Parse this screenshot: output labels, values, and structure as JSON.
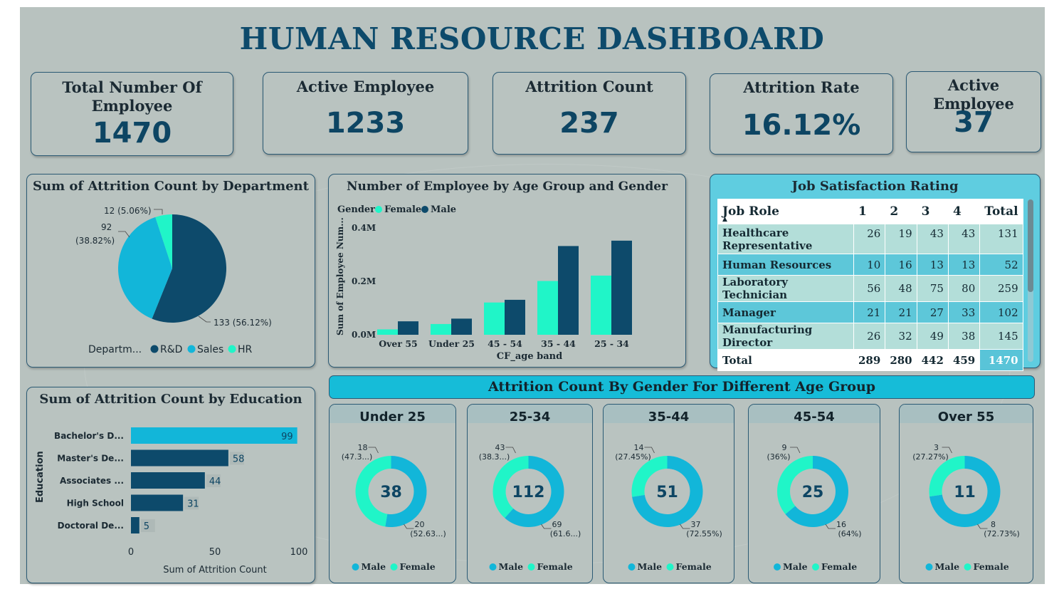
{
  "title": "HUMAN RESOURCE DASHBOARD",
  "kpis": [
    {
      "label": "Total Number Of Employee",
      "value": "1470"
    },
    {
      "label": "Active Employee",
      "value": "1233"
    },
    {
      "label": "Attrition Count",
      "value": "237"
    },
    {
      "label": "Attrition Rate",
      "value": "16.12%"
    },
    {
      "label": "Active Employee",
      "value": "37"
    }
  ],
  "colors": {
    "rd": "#0d4a6b",
    "sales": "#12b6d9",
    "hr": "#20f5c8",
    "male": "#0d4a6b",
    "female": "#20f5c8",
    "donut_male": "#12b6d9"
  },
  "department_pie": {
    "title": "Sum of Attrition Count by Department",
    "legend_title": "Departm...",
    "labels": {
      "hr": "12 (5.06%)",
      "sales_a": "92",
      "sales_b": "(38.82%)",
      "rd": "133 (56.12%)"
    }
  },
  "age_gender_chart": {
    "title": "Number of Employee by Age Group and Gender",
    "legend_title": "Gender",
    "ylabel": "Sum of Employee Num...",
    "xlabel": "CF_age band",
    "yticks": [
      "0.4M",
      "0.2M",
      "0.0M"
    ]
  },
  "job_satisfaction": {
    "title": "Job Satisfaction Rating",
    "headers": [
      "Job Role",
      "1",
      "2",
      "3",
      "4",
      "Total"
    ],
    "rows": [
      {
        "role": "Healthcare Representative",
        "v1": "26",
        "v2": "19",
        "v3": "43",
        "v4": "43",
        "total": "131"
      },
      {
        "role": "Human Resources",
        "v1": "10",
        "v2": "16",
        "v3": "13",
        "v4": "13",
        "total": "52"
      },
      {
        "role": "Laboratory Technician",
        "v1": "56",
        "v2": "48",
        "v3": "75",
        "v4": "80",
        "total": "259"
      },
      {
        "role": "Manager",
        "v1": "21",
        "v2": "21",
        "v3": "27",
        "v4": "33",
        "total": "102"
      },
      {
        "role": "Manufacturing Director",
        "v1": "26",
        "v2": "32",
        "v3": "49",
        "v4": "38",
        "total": "145"
      }
    ],
    "totals": {
      "label": "Total",
      "v1": "289",
      "v2": "280",
      "v3": "442",
      "v4": "459",
      "total": "1470"
    }
  },
  "education_chart": {
    "title": "Sum of Attrition Count by Education",
    "ylabel": "Education",
    "xlabel": "Sum of Attrition Count",
    "xticks": [
      "0",
      "50",
      "100"
    ]
  },
  "attrition_gender_age": {
    "title": "Attrition Count By Gender For Different Age Group",
    "legend": {
      "male": "Male",
      "female": "Female"
    },
    "groups": [
      {
        "name": "Under 25",
        "total": "38",
        "female_a": "18",
        "female_b": "(47.3...)",
        "male_a": "20",
        "male_b": "(52.63...)"
      },
      {
        "name": "25-34",
        "total": "112",
        "female_a": "43",
        "female_b": "(38.3...)",
        "male_a": "69",
        "male_b": "(61.6...)"
      },
      {
        "name": "35-44",
        "total": "51",
        "female_a": "14",
        "female_b": "(27.45%)",
        "male_a": "37",
        "male_b": "(72.55%)"
      },
      {
        "name": "45-54",
        "total": "25",
        "female_a": "9",
        "female_b": "(36%)",
        "male_a": "16",
        "male_b": "(64%)"
      },
      {
        "name": "Over 55",
        "total": "11",
        "female_a": "3",
        "female_b": "(27.27%)",
        "male_a": "8",
        "male_b": "(72.73%)"
      }
    ]
  },
  "chart_data": [
    {
      "type": "pie",
      "title": "Sum of Attrition Count by Department",
      "categories": [
        "R&D",
        "Sales",
        "HR"
      ],
      "values": [
        133,
        92,
        12
      ],
      "legend": "bottom"
    },
    {
      "type": "bar",
      "title": "Number of Employee by Age Group and Gender",
      "categories": [
        "Over 55",
        "Under 25",
        "45 - 54",
        "35 - 44",
        "25 - 34"
      ],
      "series": [
        {
          "name": "Female",
          "values": [
            0.02,
            0.04,
            0.12,
            0.2,
            0.22
          ]
        },
        {
          "name": "Male",
          "values": [
            0.05,
            0.06,
            0.13,
            0.33,
            0.35
          ]
        }
      ],
      "xlabel": "CF_age band",
      "ylabel": "Sum of Employee Num...",
      "ylim": [
        0,
        0.4
      ],
      "legend": "top-left"
    },
    {
      "type": "bar",
      "title": "Sum of Attrition Count by Education",
      "orientation": "horizontal",
      "categories": [
        "Bachelor's D...",
        "Master's De...",
        "Associates ...",
        "High School",
        "Doctoral De..."
      ],
      "values": [
        99,
        58,
        44,
        31,
        5
      ],
      "xlabel": "Sum of Attrition Count",
      "ylabel": "Education",
      "xlim": [
        0,
        100
      ]
    },
    {
      "type": "pie",
      "title": "Attrition Count By Gender For Different Age Group",
      "donut": true,
      "panels": [
        {
          "title": "Under 25",
          "categories": [
            "Male",
            "Female"
          ],
          "values": [
            20,
            18
          ]
        },
        {
          "title": "25-34",
          "categories": [
            "Male",
            "Female"
          ],
          "values": [
            69,
            43
          ]
        },
        {
          "title": "35-44",
          "categories": [
            "Male",
            "Female"
          ],
          "values": [
            37,
            14
          ]
        },
        {
          "title": "45-54",
          "categories": [
            "Male",
            "Female"
          ],
          "values": [
            16,
            9
          ]
        },
        {
          "title": "Over 55",
          "categories": [
            "Male",
            "Female"
          ],
          "values": [
            8,
            3
          ]
        }
      ]
    }
  ]
}
